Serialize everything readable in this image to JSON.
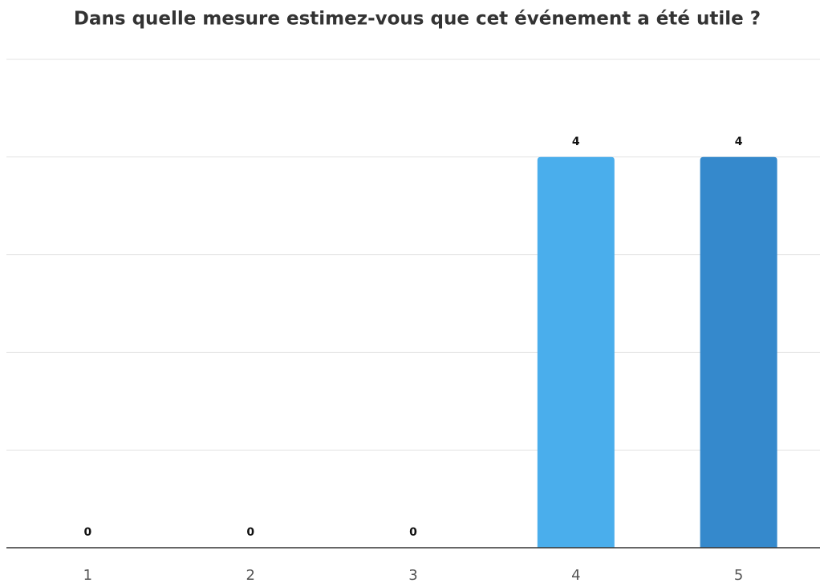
{
  "chart_data": {
    "type": "bar",
    "title": "Dans quelle mesure estimez-vous que cet événement a été utile ?",
    "categories": [
      "1",
      "2",
      "3",
      "4",
      "5"
    ],
    "values": [
      0,
      0,
      0,
      4,
      4
    ],
    "colors": [
      "#4aaeec",
      "#3589cc",
      "#4aaeec",
      "#4aaeec",
      "#3589cc"
    ],
    "ylim": [
      0,
      5
    ],
    "yticks": [
      0,
      1,
      2,
      3,
      4,
      5
    ],
    "grid": true
  }
}
